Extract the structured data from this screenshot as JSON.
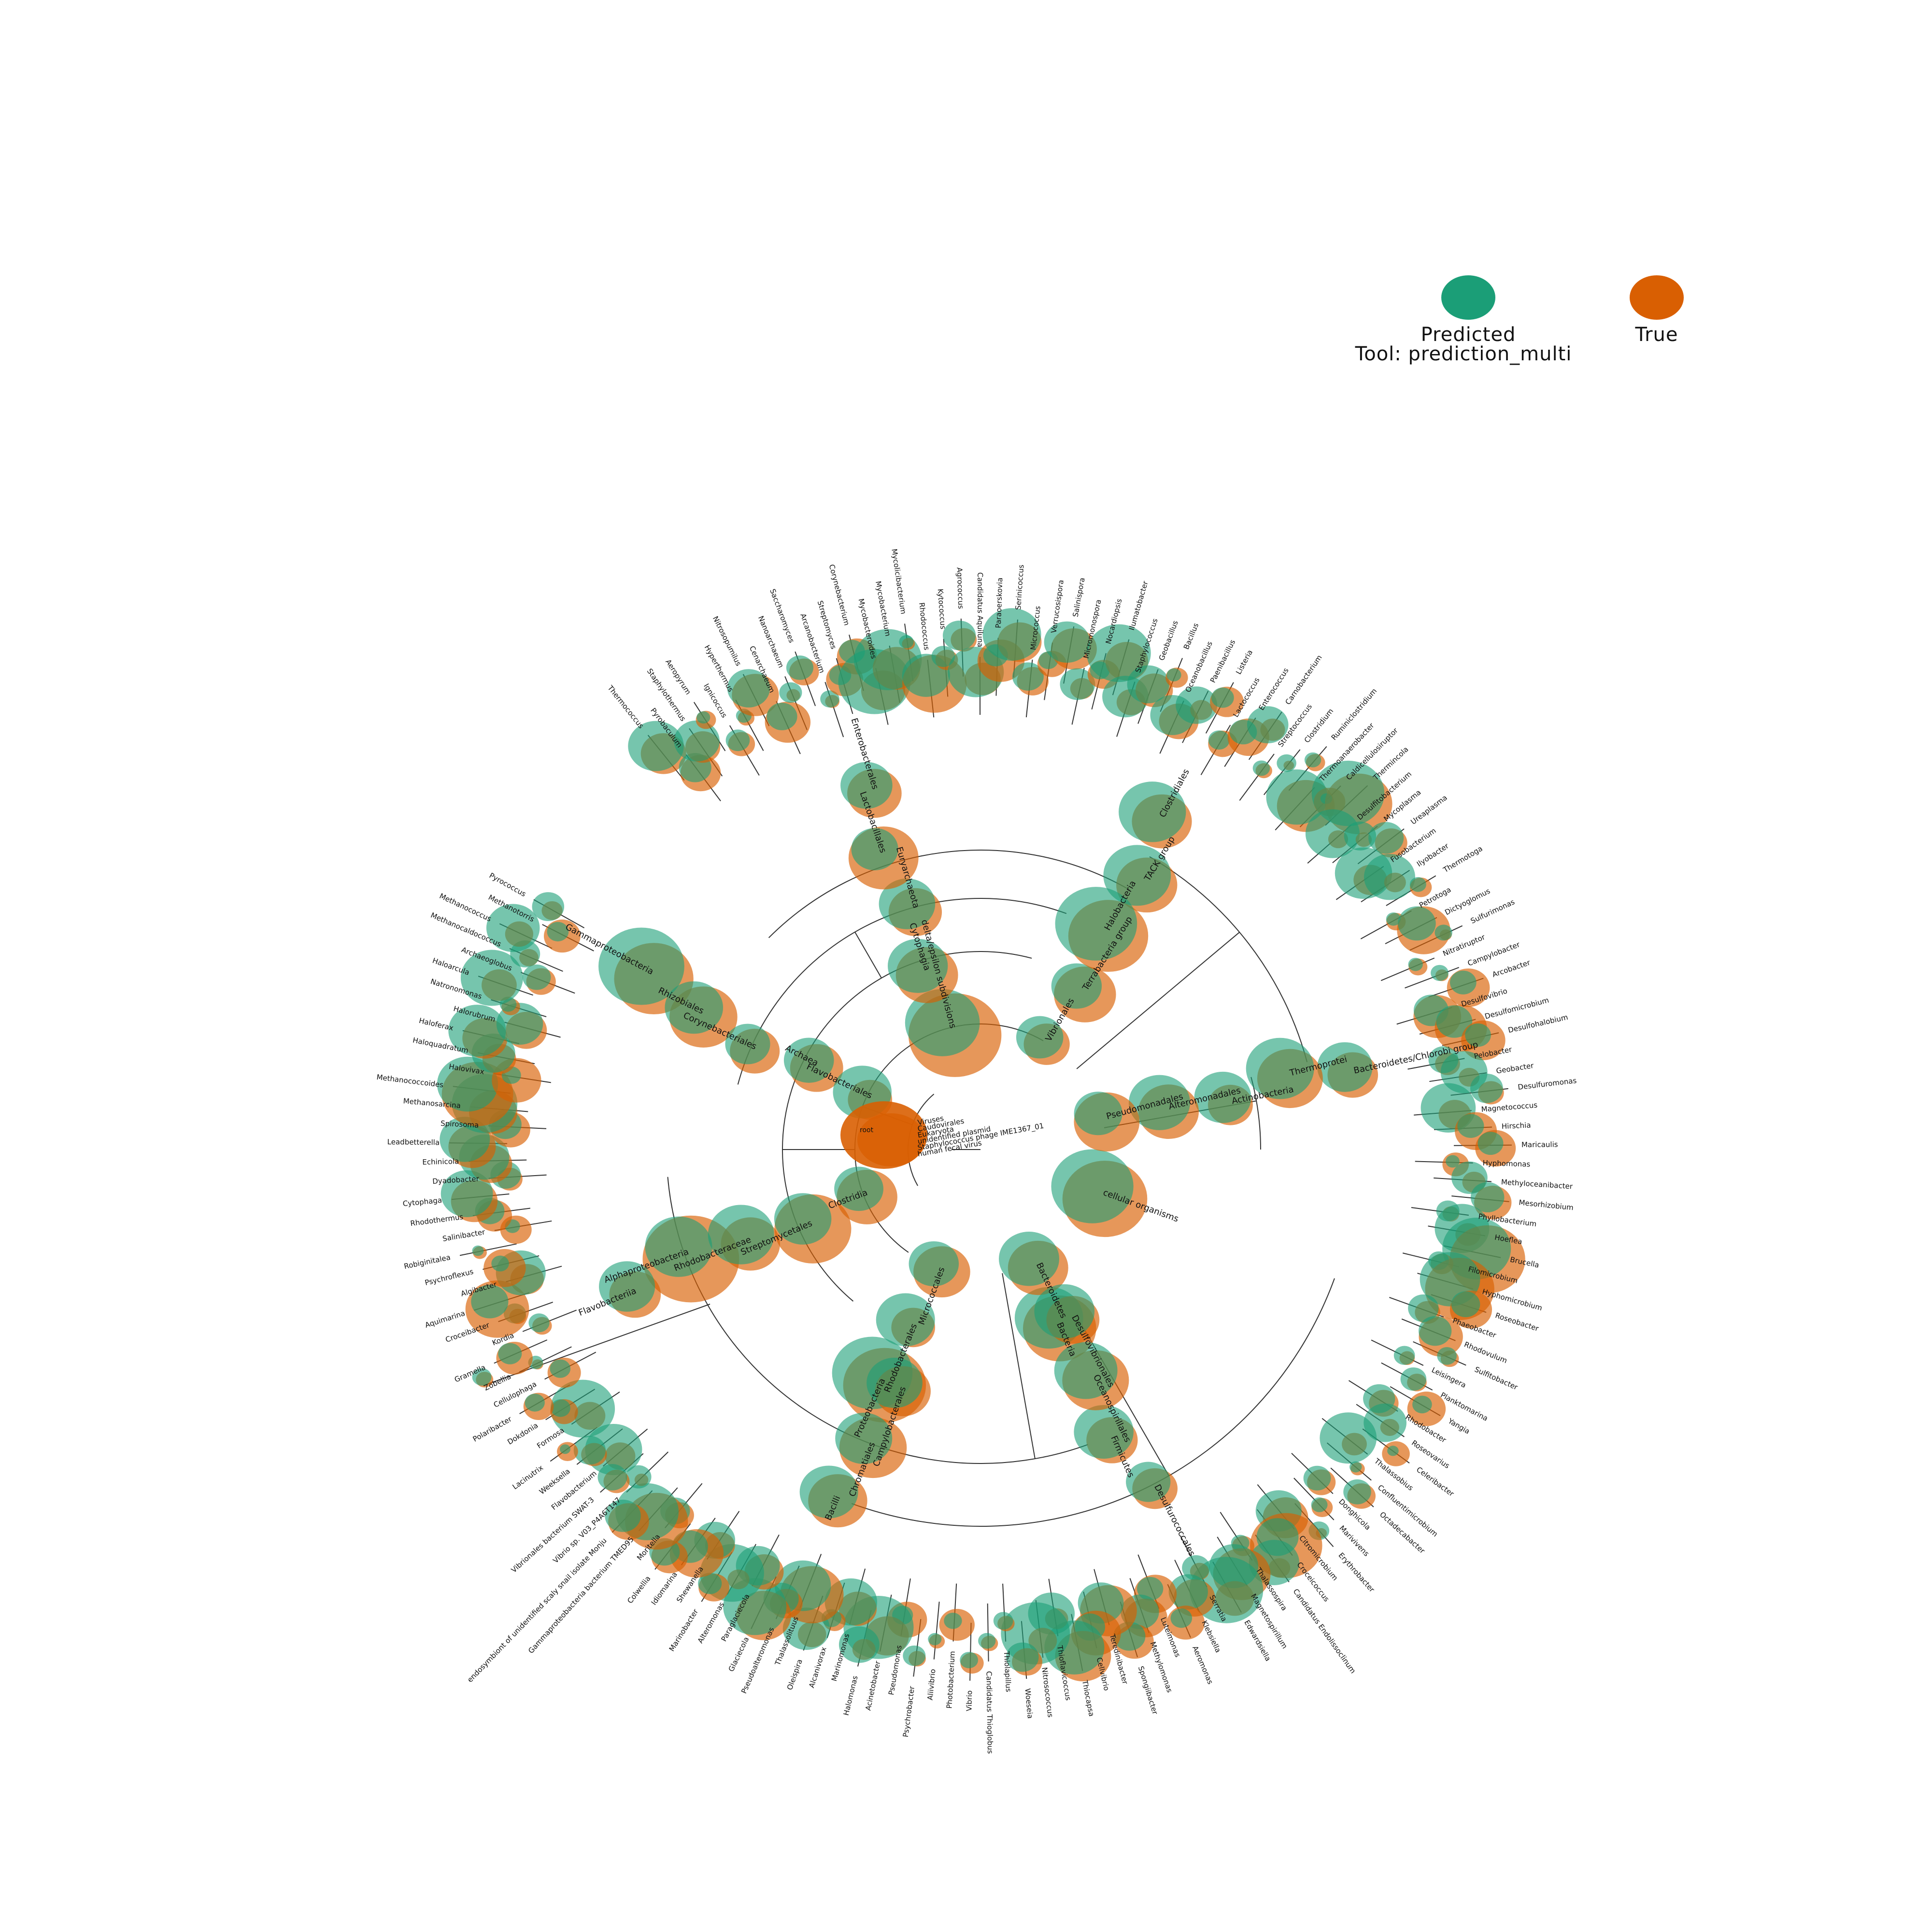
{
  "legend": {
    "predicted_label": "Predicted",
    "true_label": "True",
    "tool_label": "Tool: prediction_multi",
    "predicted_color": "#1b9e77",
    "true_color": "#d95f02"
  },
  "tree": {
    "root_label": "root",
    "center_labels": [
      "Viruses",
      "Caudovirales",
      "Eukaryota",
      "unidentified plasmid",
      "Staphylococcus phage IME1367_01",
      "human fecal virus"
    ],
    "internal_labels": [
      {
        "label": "cellular organisms"
      },
      {
        "label": "Bacteria"
      },
      {
        "label": "Proteobacteria"
      },
      {
        "label": "Alphaproteobacteria"
      },
      {
        "label": "Gammaproteobacteria"
      },
      {
        "label": "delta/epsilon subdivisions"
      },
      {
        "label": "Terrabacteria group"
      },
      {
        "label": "Actinobacteria"
      },
      {
        "label": "Firmicutes"
      },
      {
        "label": "Bacilli"
      },
      {
        "label": "Clostridia"
      },
      {
        "label": "Archaea"
      },
      {
        "label": "Euryarchaeota"
      },
      {
        "label": "TACK group"
      },
      {
        "label": "Bacteroidetes/Chlorobi group"
      },
      {
        "label": "Bacteroidetes"
      },
      {
        "label": "Rhodobacterales"
      },
      {
        "label": "Rhodobacteraceae"
      },
      {
        "label": "Rhizobiales"
      },
      {
        "label": "Enterobacterales"
      },
      {
        "label": "Vibrionales"
      },
      {
        "label": "Alteromonadales"
      },
      {
        "label": "Oceanospirillales"
      },
      {
        "label": "Chromatiales"
      },
      {
        "label": "Flavobacteriia"
      },
      {
        "label": "Flavobacteriales"
      },
      {
        "label": "Cytophagia"
      },
      {
        "label": "Halobacteria"
      },
      {
        "label": "Thermoprotei"
      },
      {
        "label": "Desulfurococcales"
      },
      {
        "label": "Micrococcales"
      },
      {
        "label": "Streptomycetales"
      },
      {
        "label": "Corynebacteriales"
      },
      {
        "label": "Lactobacillales"
      },
      {
        "label": "Clostridiales"
      },
      {
        "label": "Pseudomonadales"
      },
      {
        "label": "Desulfovibrionales"
      },
      {
        "label": "Campylobacterales"
      }
    ],
    "leaf_labels": [
      "Flavobacterium",
      "Weeksella",
      "Lacinutrix",
      "Formosa",
      "Dokdonia",
      "Polaribacter",
      "Cellulophaga",
      "Zobellia",
      "Gramella",
      "Kordia",
      "Croceibacter",
      "Aquimarina",
      "Algibacter",
      "Psychroflexus",
      "Robiginitalea",
      "Salinibacter",
      "Rhodothermus",
      "Cytophaga",
      "Dyadobacter",
      "Echinicola",
      "Leadbetterella",
      "Spirosoma",
      "Methanosarcina",
      "Methanococcoides",
      "Halovivax",
      "Haloquadratum",
      "Haloferax",
      "Halorubrum",
      "Natronomonas",
      "Haloarcula",
      "Archaeoglobus",
      "Methanocaldococcus",
      "Methanococcus",
      "Methanotorris",
      "Pyrococcus",
      "Thermococcus",
      "Pyrobaculum",
      "Staphylothermus",
      "Aeropyrum",
      "Ignicoccus",
      "Hyperthermus",
      "Nitrosopumilus",
      "Cenarchaeum",
      "Nanoarchaeum",
      "Saccharomyces",
      "Arcanobacterium",
      "Streptomyces",
      "Corynebacterium",
      "Mycobacteroides",
      "Mycobacterium",
      "Mycolicibacterium",
      "Rhodococcus",
      "Kytococcus",
      "Agrococcus",
      "Candidatus Aquiluna",
      "Paraoerskovia",
      "Serinicoccus",
      "Micrococcus",
      "Verrucosispora",
      "Salinispora",
      "Micromonospora",
      "Nocardiopsis",
      "Ilumatobacter",
      "Staphylococcus",
      "Geobacillus",
      "Bacillus",
      "Oceanobacillus",
      "Paenibacillus",
      "Listeria",
      "Lactococcus",
      "Enterococcus",
      "Carnobacterium",
      "Streptococcus",
      "Clostridium",
      "Ruminiclostridium",
      "Thermoanaerobacter",
      "Caldicellulosiruptor",
      "Thermincola",
      "Desulfitobacterium",
      "Mycoplasma",
      "Ureaplasma",
      "Fusobacterium",
      "Ilyobacter",
      "Thermotoga",
      "Petrotoga",
      "Dictyoglomus",
      "Sulfurimonas",
      "Nitratiruptor",
      "Campylobacter",
      "Arcobacter",
      "Desulfovibrio",
      "Desulfomicrobium",
      "Desulfohalobium",
      "Pelobacter",
      "Geobacter",
      "Desulfuromonas",
      "Magnetococcus",
      "Hirschia",
      "Maricaulis",
      "Hyphomonas",
      "Methyloceanibacter",
      "Mesorhizobium",
      "Phyllobacterium",
      "Hoeflea",
      "Brucella",
      "Filomicrobium",
      "Hyphomicrobium",
      "Roseobacter",
      "Phaeobacter",
      "Rhodovulum",
      "Sulfitobacter",
      "Leisingera",
      "Planktomarina",
      "Yangia",
      "Rhodobacter",
      "Roseovarius",
      "Celeribacter",
      "Thalassobius",
      "Confluentimicrobium",
      "Octadecabacter",
      "Donghicola",
      "Marivivens",
      "Erythrobacter",
      "Citromicrobium",
      "Croceicoccus",
      "Candidatus Endolissoclinum",
      "Thalassospira",
      "Magnetospirillum",
      "Edwardsiella",
      "Serratia",
      "Klebsiella",
      "Aeromonas",
      "Luteimonas",
      "Methylomonas",
      "Spongiibacter",
      "Teredinibacter",
      "Cellvibrio",
      "Thiocapsa",
      "Thioflavicoccus",
      "Nitrosococcus",
      "Woeseia",
      "Thiolapillus",
      "Candidatus Thioglobus",
      "Vibrio",
      "Photobacterium",
      "Aliivibrio",
      "Psychrobacter",
      "Pseudomonas",
      "Acinetobacter",
      "Halomonas",
      "Marinomonas",
      "Alcanivorax",
      "Oleispira",
      "Thalassolituus",
      "Pseudoalteromonas",
      "Glaciecola",
      "Paraglaciecola",
      "Alteromonas",
      "Marinobacter",
      "Shewanella",
      "Idiomarina",
      "Colwellia",
      "Moritella",
      "Gammaproteobacteria bacterium TMED95",
      "endosymbiont of unidentified scaly snail isolate Monju",
      "Vibrio sp. V03_P4A6T147",
      "Vibrionales bacterium SWAT-3"
    ]
  }
}
